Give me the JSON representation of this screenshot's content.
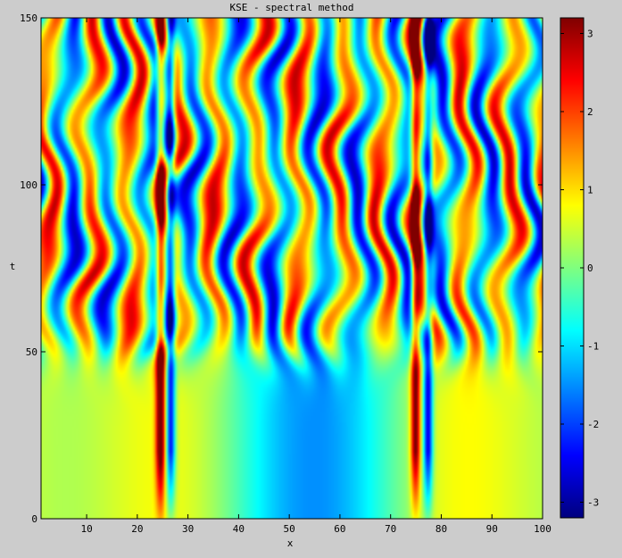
{
  "chart_data": {
    "type": "heatmap",
    "title": "KSE - spectral method",
    "xlabel": "x",
    "ylabel": "t",
    "xlim": [
      1,
      100
    ],
    "ylim": [
      0,
      150
    ],
    "clim": [
      -3.2,
      3.2
    ],
    "colormap": "jet",
    "x_ticks": [
      10,
      20,
      30,
      40,
      50,
      60,
      70,
      80,
      90,
      100
    ],
    "x_tick_labels": [
      "10",
      "20",
      "30",
      "40",
      "50",
      "60",
      "70",
      "80",
      "90",
      "100"
    ],
    "y_ticks": [
      0,
      50,
      100,
      150
    ],
    "y_tick_labels": [
      "0",
      "50",
      "100",
      "150"
    ],
    "colorbar_ticks": [
      3,
      2,
      1,
      0,
      -1,
      -2,
      -3
    ],
    "colorbar_tick_labels": [
      "3",
      "2",
      "1",
      "0",
      "-1",
      "-2",
      "-3"
    ],
    "stable_stripes_x": [
      24.5,
      26.5,
      75,
      77.5
    ],
    "pattern_onset_t": 50,
    "grid": false
  },
  "colors": {
    "background": "#cccccc",
    "jet": [
      "#00007f",
      "#0000ff",
      "#007fff",
      "#00ffff",
      "#7fff7f",
      "#ffff00",
      "#ff7f00",
      "#ff0000",
      "#7f0000"
    ]
  }
}
